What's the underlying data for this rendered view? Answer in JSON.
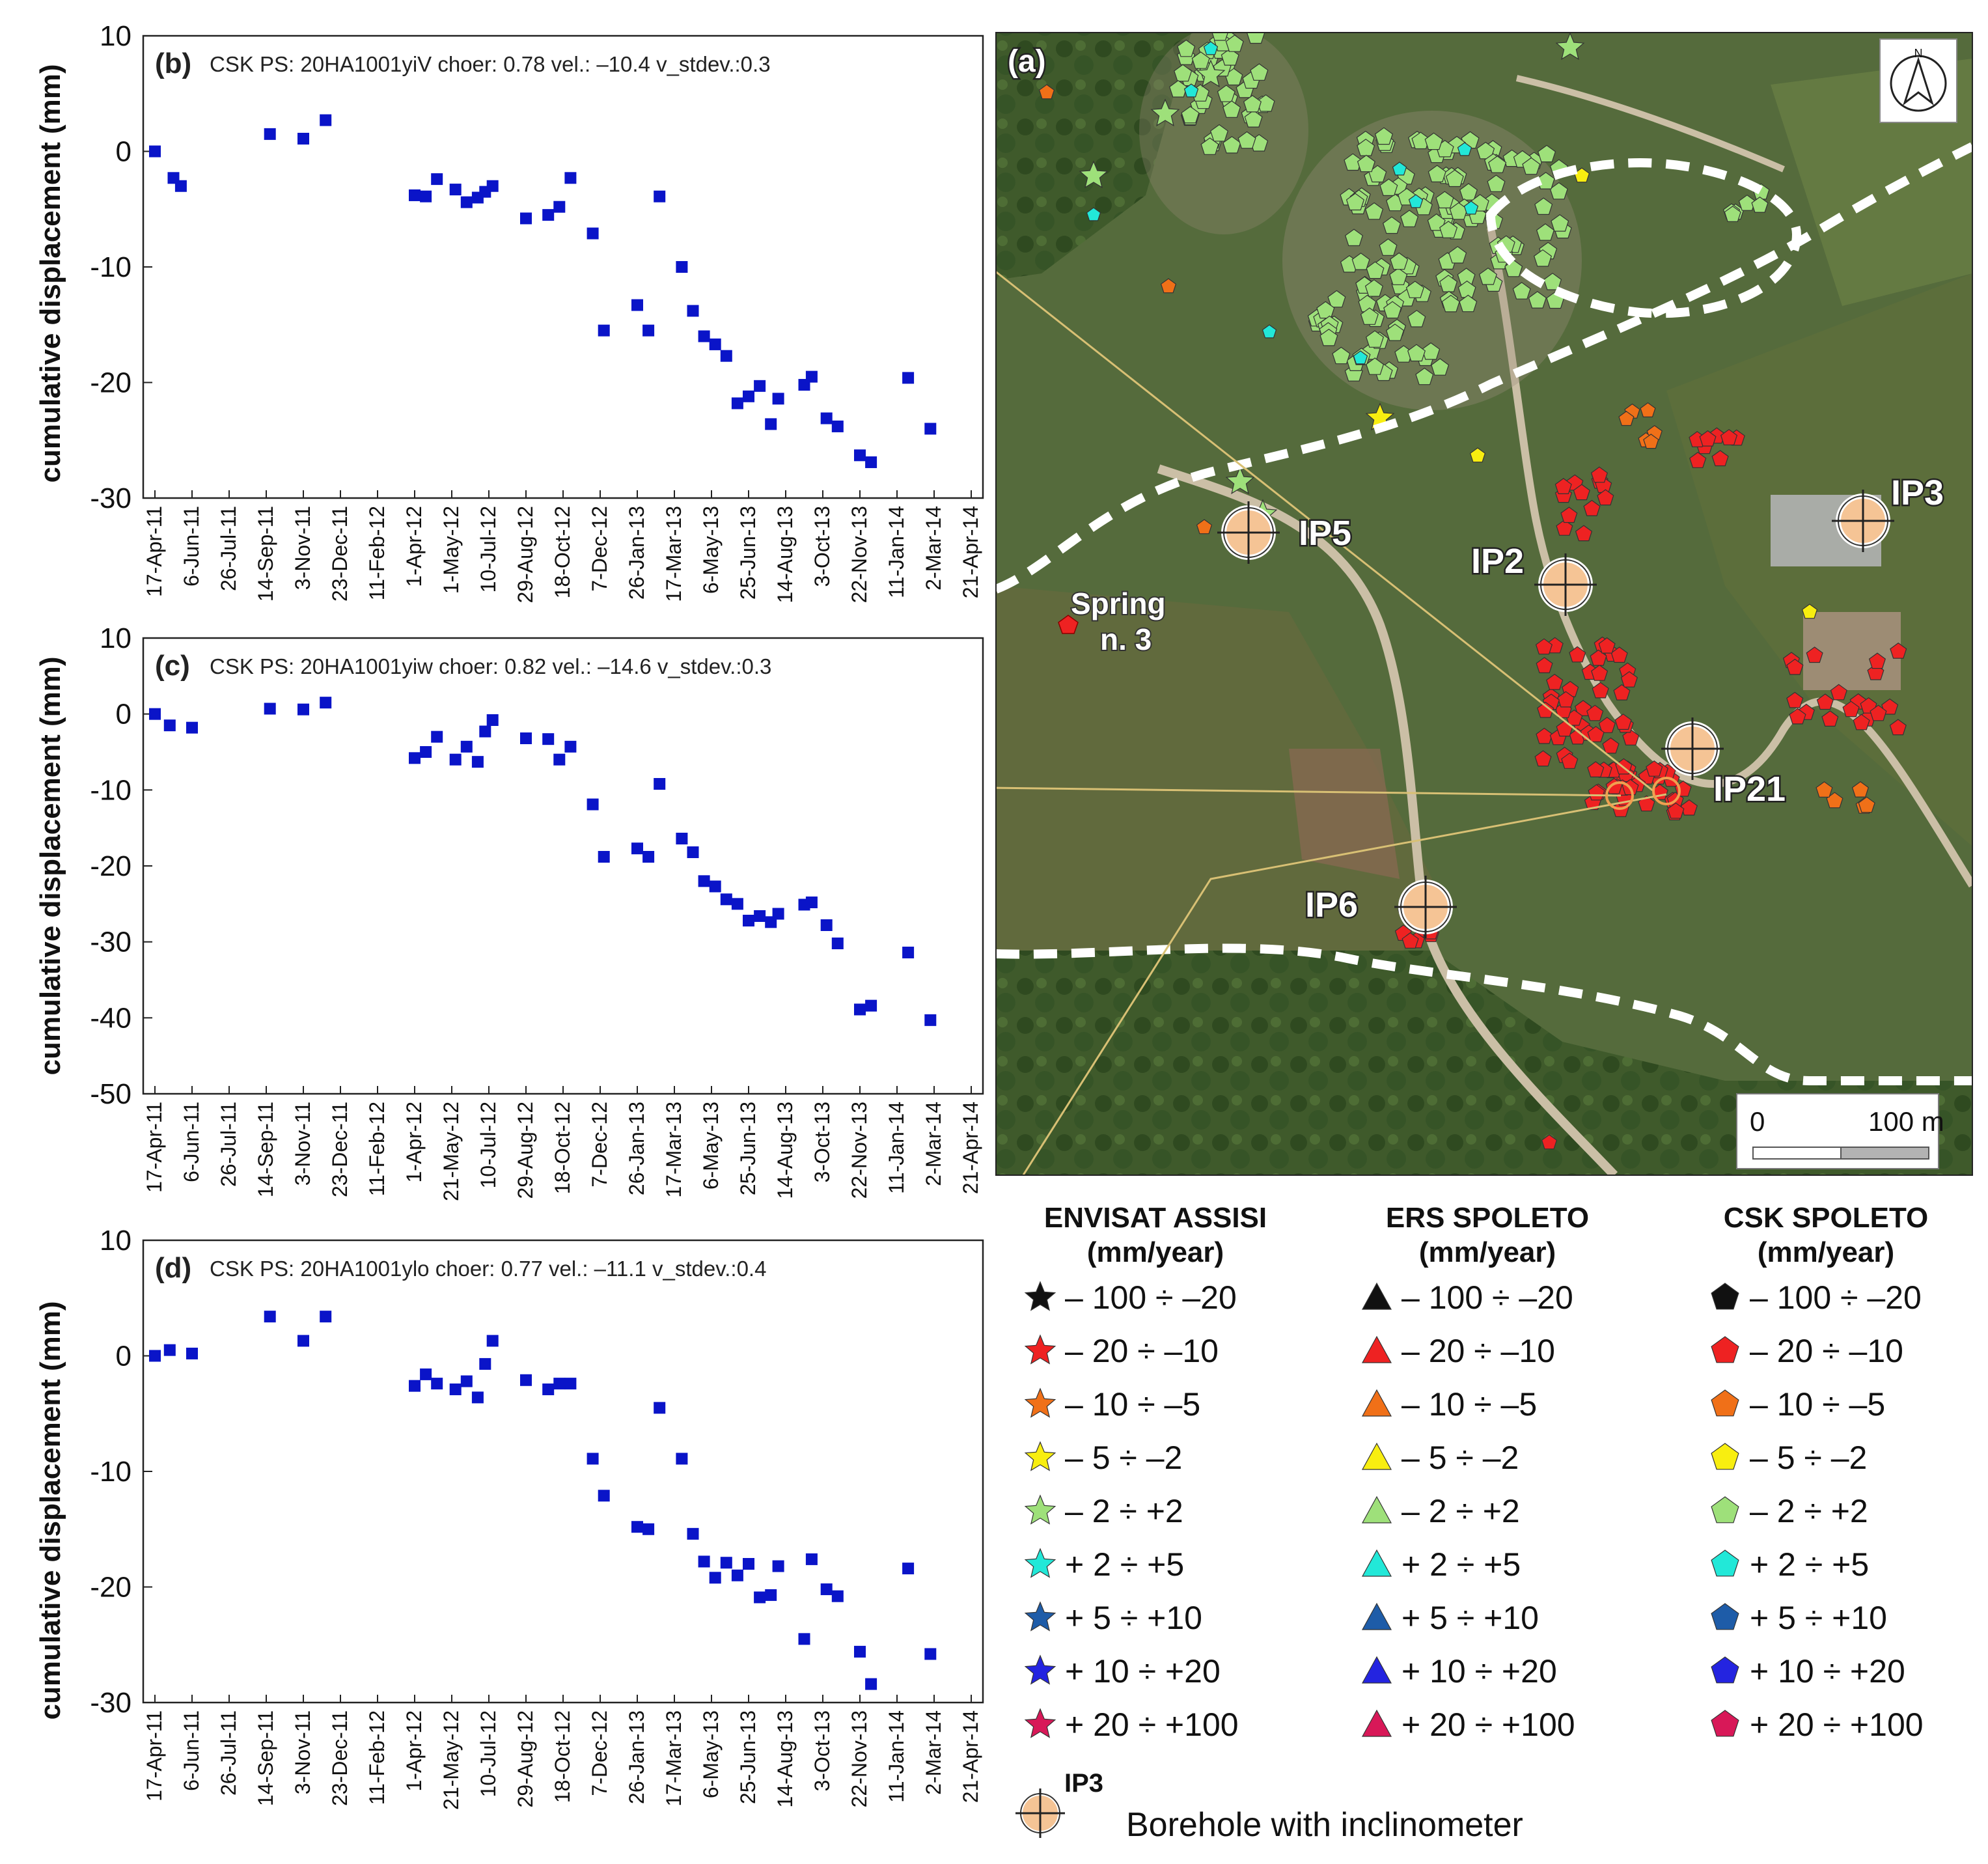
{
  "chart_data": [
    {
      "id": "b",
      "type": "scatter",
      "panel_letter": "(b)",
      "title": "CSK PS: 20HA1001yiV choer: 0.78 vel.: –10.4 v_stdev.:0.3",
      "ylabel": "cumulative displacement (mm)",
      "ylim": [
        -30,
        10
      ],
      "yticks": [
        10,
        0,
        -10,
        -20,
        -30
      ],
      "x_tick_labels": [
        "17-Apr-11",
        "6-Jun-11",
        "26-Jul-11",
        "14-Sep-11",
        "3-Nov-11",
        "23-Dec-11",
        "11-Feb-12",
        "1-Apr-12",
        "1-May-12",
        "10-Jul-12",
        "29-Aug-12",
        "18-Oct-12",
        "7-Dec-12",
        "26-Jan-13",
        "17-Mar-13",
        "6-May-13",
        "25-Jun-13",
        "14-Aug-13",
        "3-Oct-13",
        "22-Nov-13",
        "11-Jan-14",
        "2-Mar-14",
        "21-Apr-14"
      ],
      "marker_color": "#0a14c8",
      "points": [
        [
          0,
          0
        ],
        [
          0.5,
          -2.3
        ],
        [
          0.7,
          -3
        ],
        [
          3.1,
          1.5
        ],
        [
          4.0,
          1.1
        ],
        [
          4.6,
          2.7
        ],
        [
          7.0,
          -3.8
        ],
        [
          7.3,
          -3.9
        ],
        [
          7.6,
          -2.4
        ],
        [
          8.1,
          -3.3
        ],
        [
          8.4,
          -4.4
        ],
        [
          8.7,
          -4
        ],
        [
          8.9,
          -3.5
        ],
        [
          9.1,
          -3
        ],
        [
          10.0,
          -5.8
        ],
        [
          10.6,
          -5.5
        ],
        [
          10.9,
          -4.8
        ],
        [
          11.2,
          -2.3
        ],
        [
          11.8,
          -7.1
        ],
        [
          12.1,
          -15.5
        ],
        [
          13.0,
          -13.3
        ],
        [
          13.3,
          -15.5
        ],
        [
          13.6,
          -3.9
        ],
        [
          14.2,
          -10
        ],
        [
          14.5,
          -13.8
        ],
        [
          14.8,
          -16
        ],
        [
          15.1,
          -16.7
        ],
        [
          15.4,
          -17.7
        ],
        [
          15.7,
          -21.8
        ],
        [
          16.0,
          -21.2
        ],
        [
          16.3,
          -20.3
        ],
        [
          16.6,
          -23.6
        ],
        [
          16.8,
          -21.4
        ],
        [
          17.5,
          -20.2
        ],
        [
          17.7,
          -19.5
        ],
        [
          18.1,
          -23.1
        ],
        [
          18.4,
          -23.8
        ],
        [
          19.0,
          -26.3
        ],
        [
          19.3,
          -26.9
        ],
        [
          20.3,
          -19.6
        ],
        [
          20.9,
          -24
        ]
      ]
    },
    {
      "id": "c",
      "type": "scatter",
      "panel_letter": "(c)",
      "title": "CSK PS: 20HA1001yiw choer: 0.82 vel.: –14.6 v_stdev.:0.3",
      "ylabel": "cumulative displacement (mm)",
      "ylim": [
        -50,
        10
      ],
      "yticks": [
        10,
        0,
        -10,
        -20,
        -30,
        -40,
        -50
      ],
      "x_tick_labels": [
        "17-Apr-11",
        "6-Jun-11",
        "26-Jul-11",
        "14-Sep-11",
        "3-Nov-11",
        "23-Dec-11",
        "11-Feb-12",
        "1-Apr-12",
        "21-May-12",
        "10-Jul-12",
        "29-Aug-12",
        "18-Oct-12",
        "7-Dec-12",
        "26-Jan-13",
        "17-Mar-13",
        "6-May-13",
        "25-Jun-13",
        "14-Aug-13",
        "3-Oct-13",
        "22-Nov-13",
        "11-Jan-14",
        "2-Mar-14",
        "21-Apr-14"
      ],
      "marker_color": "#0a14c8",
      "points": [
        [
          0,
          0
        ],
        [
          0.4,
          -1.5
        ],
        [
          1.0,
          -1.8
        ],
        [
          3.1,
          0.7
        ],
        [
          4.0,
          0.6
        ],
        [
          4.6,
          1.5
        ],
        [
          7.0,
          -5.8
        ],
        [
          7.3,
          -5
        ],
        [
          7.6,
          -3
        ],
        [
          8.1,
          -6
        ],
        [
          8.4,
          -4.3
        ],
        [
          8.7,
          -6.3
        ],
        [
          8.9,
          -2.3
        ],
        [
          9.1,
          -0.8
        ],
        [
          10.0,
          -3.2
        ],
        [
          10.6,
          -3.3
        ],
        [
          10.9,
          -6
        ],
        [
          11.2,
          -4.3
        ],
        [
          11.8,
          -11.9
        ],
        [
          12.1,
          -18.8
        ],
        [
          13.0,
          -17.7
        ],
        [
          13.3,
          -18.8
        ],
        [
          13.6,
          -9.2
        ],
        [
          14.2,
          -16.4
        ],
        [
          14.5,
          -18.2
        ],
        [
          14.8,
          -22
        ],
        [
          15.1,
          -22.7
        ],
        [
          15.4,
          -24.4
        ],
        [
          15.7,
          -25
        ],
        [
          16.0,
          -27.2
        ],
        [
          16.3,
          -26.6
        ],
        [
          16.6,
          -27.4
        ],
        [
          16.8,
          -26.3
        ],
        [
          17.5,
          -25.1
        ],
        [
          17.7,
          -24.8
        ],
        [
          18.1,
          -27.8
        ],
        [
          18.4,
          -30.2
        ],
        [
          19.0,
          -38.9
        ],
        [
          19.3,
          -38.4
        ],
        [
          20.3,
          -31.4
        ],
        [
          20.9,
          -40.3
        ]
      ]
    },
    {
      "id": "d",
      "type": "scatter",
      "panel_letter": "(d)",
      "title": "CSK PS: 20HA1001ylo choer: 0.77 vel.: –11.1 v_stdev.:0.4",
      "ylabel": "cumulative displacement (mm)",
      "ylim": [
        -30,
        10
      ],
      "yticks": [
        10,
        0,
        -10,
        -20,
        -30
      ],
      "x_tick_labels": [
        "17-Apr-11",
        "6-Jun-11",
        "26-Jul-11",
        "14-Sep-11",
        "3-Nov-11",
        "23-Dec-11",
        "11-Feb-12",
        "1-Apr-12",
        "21-May-12",
        "10-Jul-12",
        "29-Aug-12",
        "18-Oct-12",
        "7-Dec-12",
        "26-Jan-13",
        "17-Mar-13",
        "6-May-13",
        "25-Jun-13",
        "14-Aug-13",
        "3-Oct-13",
        "22-Nov-13",
        "11-Jan-14",
        "2-Mar-14",
        "21-Apr-14"
      ],
      "marker_color": "#0a14c8",
      "points": [
        [
          0,
          0
        ],
        [
          0.4,
          0.5
        ],
        [
          1.0,
          0.2
        ],
        [
          3.1,
          3.4
        ],
        [
          4.0,
          1.3
        ],
        [
          4.6,
          3.4
        ],
        [
          7.0,
          -2.6
        ],
        [
          7.3,
          -1.6
        ],
        [
          7.6,
          -2.4
        ],
        [
          8.1,
          -2.9
        ],
        [
          8.4,
          -2.2
        ],
        [
          8.7,
          -3.6
        ],
        [
          8.9,
          -0.7
        ],
        [
          9.1,
          1.3
        ],
        [
          10.0,
          -2.1
        ],
        [
          10.6,
          -2.9
        ],
        [
          10.9,
          -2.4
        ],
        [
          11.2,
          -2.4
        ],
        [
          11.8,
          -8.9
        ],
        [
          12.1,
          -12.1
        ],
        [
          13.0,
          -14.8
        ],
        [
          13.3,
          -15
        ],
        [
          13.6,
          -4.5
        ],
        [
          14.2,
          -8.9
        ],
        [
          14.5,
          -15.4
        ],
        [
          14.8,
          -17.8
        ],
        [
          15.1,
          -19.2
        ],
        [
          15.4,
          -17.9
        ],
        [
          15.7,
          -19
        ],
        [
          16.0,
          -18
        ],
        [
          16.3,
          -20.9
        ],
        [
          16.6,
          -20.7
        ],
        [
          16.8,
          -18.2
        ],
        [
          17.5,
          -24.5
        ],
        [
          17.7,
          -17.6
        ],
        [
          18.1,
          -20.2
        ],
        [
          18.4,
          -20.8
        ],
        [
          19.0,
          -25.6
        ],
        [
          19.3,
          -28.4
        ],
        [
          20.3,
          -18.4
        ],
        [
          20.9,
          -25.8
        ]
      ]
    }
  ],
  "map": {
    "panel_letter": "(a)",
    "labels": {
      "ip5": "IP5",
      "ip2": "IP2",
      "ip3": "IP3",
      "ip21": "IP21",
      "ip6": "IP6",
      "spring_line1": "Spring",
      "spring_line2": "n. 3"
    },
    "north_label": "N",
    "scale_start": "0",
    "scale_end": "100 m",
    "colors": {
      "ground": "#4f6436",
      "road": "#cbbfa6",
      "boundary": "#ffffff",
      "link_line": "#d8c074"
    }
  },
  "legend": {
    "columns": [
      {
        "title_line1": "ENVISAT ASSISI",
        "title_line2": "(mm/year)",
        "shape": "star"
      },
      {
        "title_line1": "ERS SPOLETO",
        "title_line2": "(mm/year)",
        "shape": "triangle"
      },
      {
        "title_line1": "CSK SPOLETO",
        "title_line2": "(mm/year)",
        "shape": "pentagon"
      }
    ],
    "classes": [
      {
        "label": "– 100 ÷ –20",
        "color": "#111111"
      },
      {
        "label": "– 20 ÷ –10",
        "color": "#ee2222"
      },
      {
        "label": "– 10 ÷ –5",
        "color": "#f07018"
      },
      {
        "label": "– 5 ÷ –2",
        "color": "#f8ee10"
      },
      {
        "label": "– 2 ÷ +2",
        "color": "#9ee07a"
      },
      {
        "label": "+ 2 ÷ +5",
        "color": "#22e8d8"
      },
      {
        "label": "+ 5 ÷ +10",
        "color": "#1e5ca8"
      },
      {
        "label": "+ 10 ÷ +20",
        "color": "#2424e0"
      },
      {
        "label": "+ 20 ÷ +100",
        "color": "#d81858"
      }
    ],
    "borehole_label": "IP3",
    "borehole_text": "Borehole with inclinometer"
  }
}
